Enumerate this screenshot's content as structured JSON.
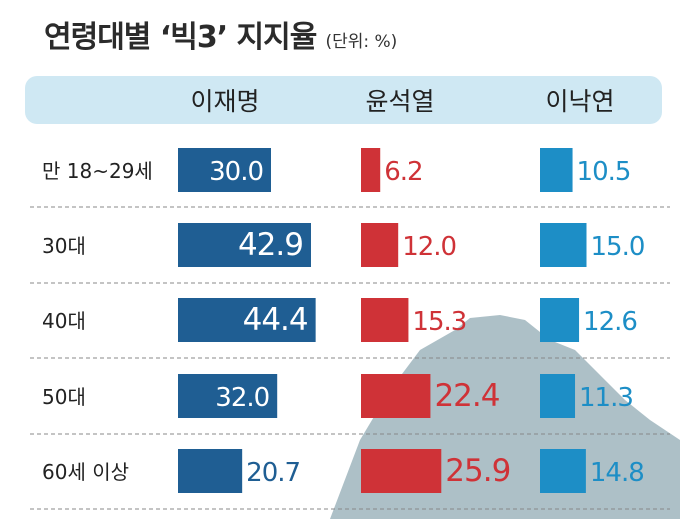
{
  "header": {
    "title": "연령대별 ‘빅3’ 지지율",
    "unit": "(단위: %)"
  },
  "chart_data": {
    "type": "bar",
    "title": "연령대별 ‘빅3’ 지지율",
    "unit": "(단위: %)",
    "categories": [
      "만 18~29세",
      "30대",
      "40대",
      "50대",
      "60세 이상"
    ],
    "series": [
      {
        "name": "이재명",
        "values": [
          30.0,
          42.9,
          44.4,
          32.0,
          20.7
        ],
        "color": "#1f5e93"
      },
      {
        "name": "윤석열",
        "values": [
          6.2,
          12.0,
          15.3,
          22.4,
          25.9
        ],
        "color": "#cf3237"
      },
      {
        "name": "이낙연",
        "values": [
          10.5,
          15.0,
          12.6,
          11.3,
          14.8
        ],
        "color": "#1d8ec6"
      }
    ],
    "value_labels": [
      [
        "30.0",
        "42.9",
        "44.4",
        "32.0",
        "20.7"
      ],
      [
        "6.2",
        "12.0",
        "15.3",
        "22.4",
        "25.9"
      ],
      [
        "10.5",
        "15.0",
        "12.6",
        "11.3",
        "14.8"
      ]
    ],
    "header_band_color": "#cfe8f3",
    "mountain_color": "#9fb5bd",
    "grid": false,
    "legend": "top-header"
  }
}
